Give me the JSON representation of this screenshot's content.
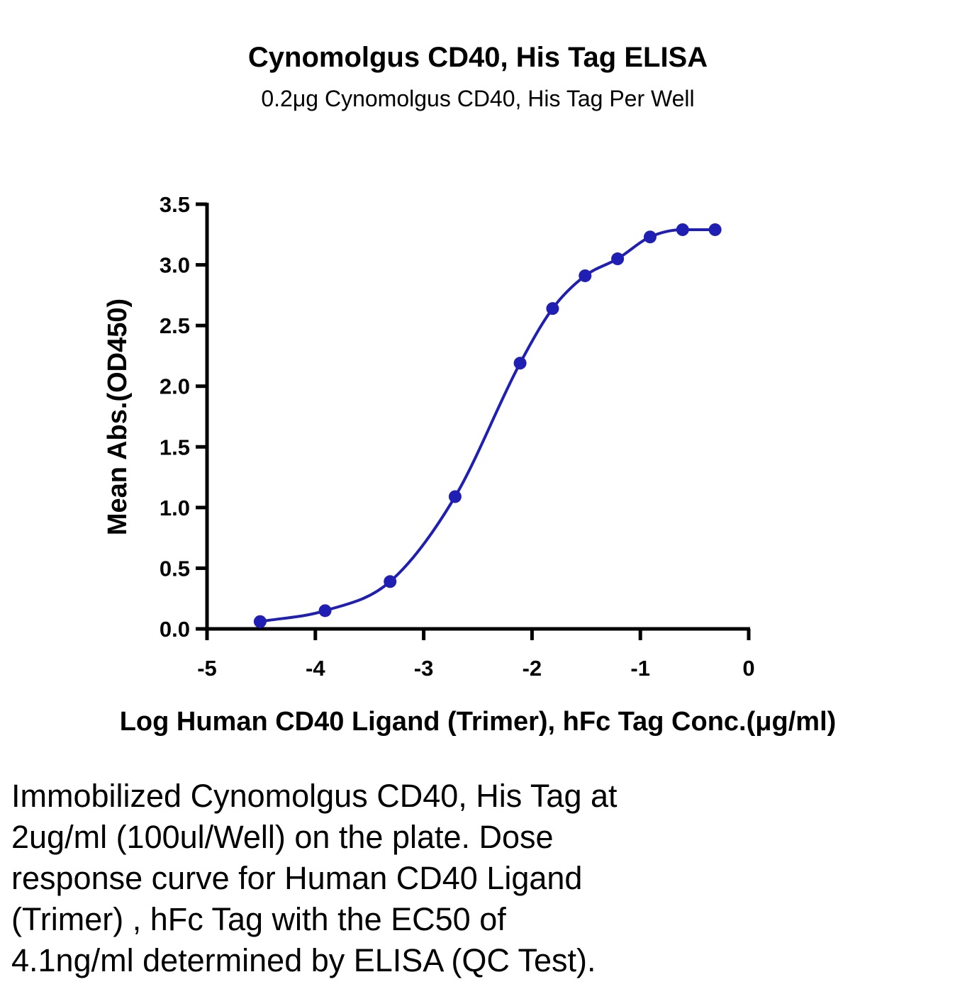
{
  "chart_data": {
    "type": "scatter",
    "title": "Cynomolgus CD40, His Tag ELISA",
    "subtitle": "0.2μg Cynomolgus CD40, His Tag Per Well",
    "xlabel": "Log Human CD40 Ligand (Trimer), hFc Tag Conc.(μg/ml)",
    "ylabel": "Mean Abs.(OD450)",
    "xlim": [
      -5,
      0
    ],
    "ylim": [
      0,
      3.5
    ],
    "xticks": [
      -5,
      -4,
      -3,
      -2,
      -1,
      0
    ],
    "xtick_labels": [
      "-5",
      "-4",
      "-3",
      "-2",
      "-1",
      "0"
    ],
    "yticks": [
      0,
      0.5,
      1,
      1.5,
      2,
      2.5,
      3,
      3.5
    ],
    "ytick_labels": [
      "0.0",
      "0.5",
      "1.0",
      "1.5",
      "2.0",
      "2.5",
      "3.0",
      "3.5"
    ],
    "grid": false,
    "fit": "sigmoidal dose-response curve",
    "series": [
      {
        "color": "#1f1fb4",
        "x": [
          -4.51,
          -3.91,
          -3.31,
          -2.71,
          -2.11,
          -1.81,
          -1.51,
          -1.21,
          -0.91,
          -0.61,
          -0.31
        ],
        "y": [
          0.06,
          0.15,
          0.39,
          1.09,
          2.19,
          2.64,
          2.91,
          3.05,
          3.23,
          3.29,
          3.29
        ]
      }
    ]
  },
  "caption": "Immobilized Cynomolgus CD40, His Tag at\n2ug/ml (100ul/Well) on the plate. Dose\nresponse curve for Human CD40 Ligand\n(Trimer) , hFc Tag with the EC50 of\n4.1ng/ml determined by ELISA (QC Test)."
}
